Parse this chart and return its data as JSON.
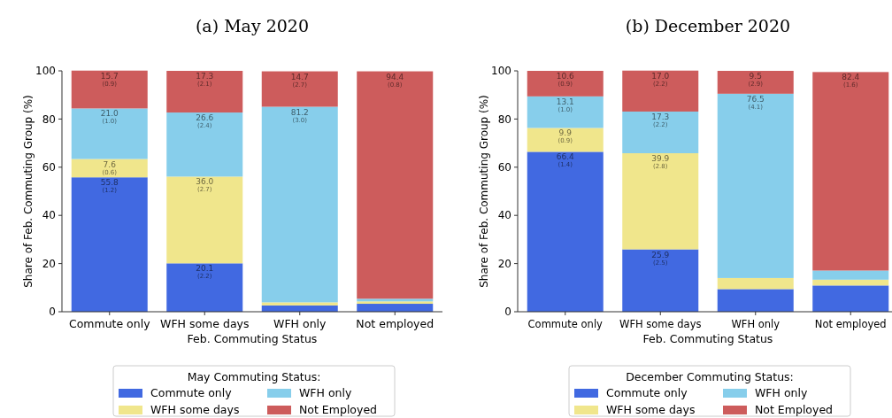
{
  "chart_data": [
    {
      "type": "bar",
      "title": "(a) May 2020",
      "xlabel": "Feb. Commuting Status",
      "ylabel": "Share of Feb. Commuting Group (%)",
      "categories": [
        "Commute only",
        "WFH some days",
        "WFH only",
        "Not employed"
      ],
      "stacked": true,
      "ylim": [
        0,
        100
      ],
      "yticks": [
        0,
        20,
        40,
        60,
        80,
        100
      ],
      "legend": "bottom",
      "legend_title": "May Commuting Status:",
      "series": [
        {
          "name": "Commute only",
          "color": "#4169e1",
          "values": [
            55.8,
            20.1,
            2.6,
            3.3
          ],
          "value_labels": [
            "55.8 (1.2)",
            "20.1 (2.2)",
            null,
            null
          ]
        },
        {
          "name": "WFH some days",
          "color": "#f0e68c",
          "values": [
            7.6,
            36.0,
            1.3,
            1.0
          ],
          "value_labels": [
            "7.6 (0.6)",
            "36.0 (2.7)",
            null,
            null
          ]
        },
        {
          "name": "WFH only",
          "color": "#87ceeb",
          "values": [
            21.0,
            26.6,
            81.2,
            1.1
          ],
          "value_labels": [
            "21.0 (1.0)",
            "26.6 (2.4)",
            "81.2 (3.0)",
            null
          ]
        },
        {
          "name": "Not Employed",
          "color": "#cd5c5c",
          "values": [
            15.7,
            17.3,
            14.7,
            94.4
          ],
          "value_labels": [
            "15.7 (0.9)",
            "17.3 (2.1)",
            "14.7 (2.7)",
            "94.4 (0.8)"
          ]
        }
      ]
    },
    {
      "type": "bar",
      "title": "(b) December 2020",
      "xlabel": "Feb. Commuting Status",
      "ylabel": "Share of Feb. Commuting Group (%)",
      "categories": [
        "Commute only",
        "WFH some days",
        "WFH only",
        "Not employed"
      ],
      "stacked": true,
      "ylim": [
        0,
        100
      ],
      "yticks": [
        0,
        20,
        40,
        60,
        80,
        100
      ],
      "legend": "bottom",
      "legend_title": "December Commuting Status:",
      "series": [
        {
          "name": "Commute only",
          "color": "#4169e1",
          "values": [
            66.4,
            25.9,
            9.4,
            10.9
          ],
          "value_labels": [
            "66.4 (1.4)",
            "25.9 (2.5)",
            null,
            null
          ]
        },
        {
          "name": "WFH some days",
          "color": "#f0e68c",
          "values": [
            9.9,
            39.9,
            4.6,
            2.4
          ],
          "value_labels": [
            "9.9 (0.9)",
            "39.9 (2.8)",
            null,
            null
          ]
        },
        {
          "name": "WFH only",
          "color": "#87ceeb",
          "values": [
            13.1,
            17.3,
            76.5,
            3.8
          ],
          "value_labels": [
            "13.1 (1.0)",
            "17.3 (2.2)",
            "76.5 (4.1)",
            null
          ]
        },
        {
          "name": "Not Employed",
          "color": "#cd5c5c",
          "values": [
            10.6,
            17.0,
            9.5,
            82.4
          ],
          "value_labels": [
            "10.6 (0.9)",
            "17.0 (2.2)",
            "9.5 (2.9)",
            "82.4 (1.6)"
          ]
        }
      ]
    }
  ]
}
